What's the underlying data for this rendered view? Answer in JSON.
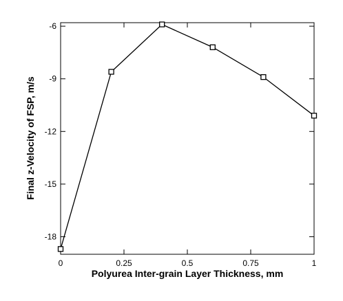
{
  "chart_data": {
    "type": "line",
    "xlabel": "Polyurea Inter-grain Layer Thickness, mm",
    "ylabel": "Final z-Velocity of FSP, m/s",
    "xlim": [
      0,
      1
    ],
    "ylim": [
      -19,
      -5.8
    ],
    "x_ticks": [
      0,
      0.25,
      0.5,
      0.75,
      1
    ],
    "x_tick_labels": [
      "0",
      "0.25",
      "0.5",
      "0.75",
      "1"
    ],
    "y_ticks": [
      -18,
      -15,
      -12,
      -9,
      -6
    ],
    "y_tick_labels": [
      "-18",
      "-15",
      "-12",
      "-9",
      "-6"
    ],
    "series": [
      {
        "marker": "open-square",
        "color": "#000000",
        "x": [
          0,
          0.2,
          0.4,
          0.6,
          0.8,
          1.0
        ],
        "y": [
          -18.7,
          -8.6,
          -5.9,
          -7.2,
          -8.9,
          -11.1
        ]
      }
    ],
    "grid": false,
    "legend": "none"
  }
}
